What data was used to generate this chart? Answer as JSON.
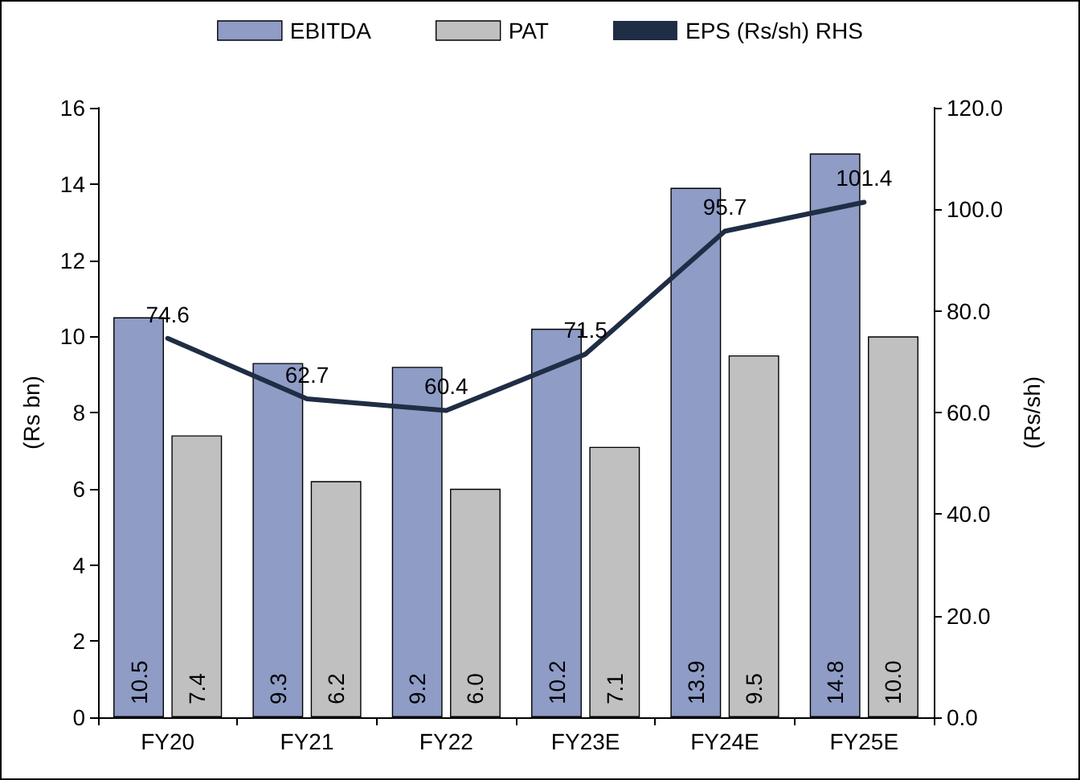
{
  "chart_data": {
    "type": "bar",
    "categories": [
      "FY20",
      "FY21",
      "FY22",
      "FY23E",
      "FY24E",
      "FY25E"
    ],
    "ylabel": "(Rs bn)",
    "y2label": "(Rs/sh)",
    "series": [
      {
        "name": "EBITDA",
        "color": "#8e9cc6",
        "values": [
          10.5,
          9.3,
          9.2,
          10.2,
          13.9,
          14.8
        ],
        "value_labels": [
          "10.5",
          "9.3",
          "9.2",
          "10.2",
          "13.9",
          "14.8"
        ]
      },
      {
        "name": "PAT",
        "color": "#c0c0c0",
        "values": [
          7.4,
          6.2,
          6.0,
          7.1,
          9.5,
          10.0
        ],
        "value_labels": [
          "7.4",
          "6.2",
          "6.0",
          "7.1",
          "9.5",
          "10.0"
        ]
      },
      {
        "name": "EPS (Rs/sh) RHS",
        "type": "line",
        "axis": "y2",
        "color": "#1f2d45",
        "values": [
          74.6,
          62.7,
          60.4,
          71.5,
          95.7,
          101.4
        ],
        "value_labels": [
          "74.6",
          "62.7",
          "60.4",
          "71.5",
          "95.7",
          "101.4"
        ]
      }
    ],
    "ylim": [
      0,
      16
    ],
    "yticks": [
      0,
      2,
      4,
      6,
      8,
      10,
      12,
      14,
      16
    ],
    "y2lim": [
      0,
      120
    ],
    "y2ticks": [
      {
        "value": 0,
        "label": "0.0"
      },
      {
        "value": 20,
        "label": "20.0"
      },
      {
        "value": 40,
        "label": "40.0"
      },
      {
        "value": 60,
        "label": "60.0"
      },
      {
        "value": 80,
        "label": "80.0"
      },
      {
        "value": 100,
        "label": "100.0"
      },
      {
        "value": 120,
        "label": "120.0"
      }
    ],
    "grid": false,
    "legend": "top",
    "marker": "none",
    "line_style": "solid"
  }
}
